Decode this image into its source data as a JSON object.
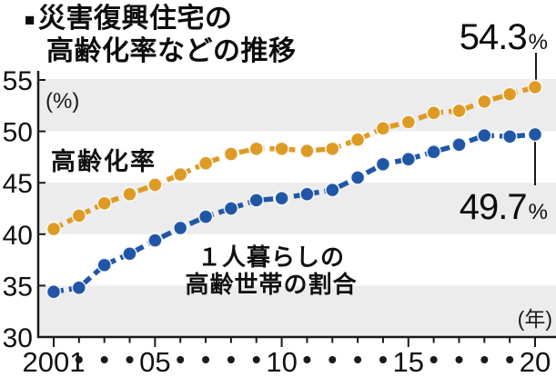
{
  "colors": {
    "orange": "#DD9B26",
    "blue": "#2156A6",
    "band_gray": "#ECECEC",
    "axis": "#1a1a1a",
    "text": "#111111"
  },
  "chart_data": {
    "type": "line",
    "title_bullet": "■",
    "title_line1": "災害復興住宅の",
    "title_line2": "高齢化率などの推移",
    "y_unit_label": "(%)",
    "x_unit_label": "(年)",
    "grid": "alternating horizontal gray bands every 5 units, no gridlines",
    "legend_position": "inline labels on chart",
    "ylim": [
      30,
      55.5
    ],
    "y_ticks": [
      30,
      35,
      40,
      45,
      50,
      55
    ],
    "x": [
      2001,
      2002,
      2003,
      2004,
      2005,
      2006,
      2007,
      2008,
      2009,
      2010,
      2011,
      2012,
      2013,
      2014,
      2015,
      2016,
      2017,
      2018,
      2019,
      2020
    ],
    "x_tick_labels": [
      "2001",
      "・",
      "・",
      "・",
      "05",
      "・",
      "・",
      "・",
      "・",
      "10",
      "・",
      "・",
      "・",
      "・",
      "15",
      "・",
      "・",
      "・",
      "・",
      "20"
    ],
    "series": [
      {
        "name": "高齢化率",
        "color": "#DD9B26",
        "end_label": "54.3%",
        "values": [
          40.5,
          41.8,
          43.0,
          43.9,
          44.8,
          45.8,
          46.9,
          47.8,
          48.3,
          48.3,
          48.1,
          48.3,
          49.2,
          50.3,
          50.9,
          51.8,
          52.0,
          52.9,
          53.6,
          54.3
        ]
      },
      {
        "name": "１人暮らしの高齢世帯の割合",
        "color": "#2156A6",
        "end_label": "49.7%",
        "values": [
          34.4,
          34.8,
          37.0,
          38.1,
          39.4,
          40.6,
          41.7,
          42.5,
          43.3,
          43.5,
          43.9,
          44.3,
          45.5,
          46.8,
          47.3,
          48.0,
          48.7,
          49.6,
          49.5,
          49.7
        ]
      }
    ],
    "series1_label": "高齢化率",
    "series2_label_line1": "１人暮らしの",
    "series2_label_line2": "高齢世帯の割合",
    "annotations": {
      "top": {
        "value": "54.3",
        "unit": "%"
      },
      "bottom": {
        "value": "49.7",
        "unit": "%"
      }
    }
  }
}
